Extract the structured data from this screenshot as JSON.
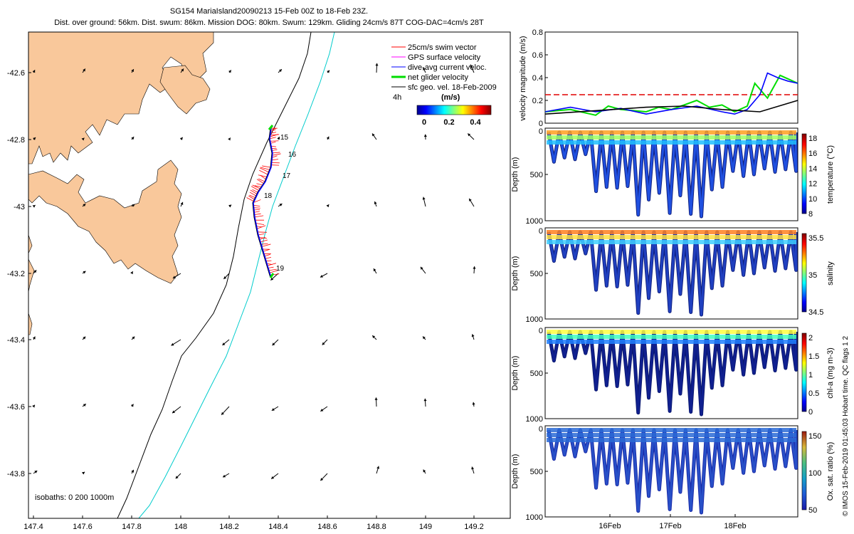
{
  "header": {
    "title": "SG154 MariaIsland20090213 15-Feb 00Z to 18-Feb 23Z.",
    "subtitle": "Dist. over ground: 56km. Dist. swum: 86km. Mission DOG: 80km. Swum: 129km. Gliding 24cm/s 87T COG-DAC=4cm/s 28T"
  },
  "map": {
    "legend": [
      {
        "label": "25cm/s swim vector",
        "color": "#ff0000"
      },
      {
        "label": "GPS surface velocity",
        "color": "#ff00ff"
      },
      {
        "label": "dive-avg current veloc.",
        "color": "#0000ff"
      },
      {
        "label": "net glider velocity",
        "color": "#00dd00"
      },
      {
        "label": "sfc geo. vel. 18-Feb-2009",
        "color": "#000000"
      }
    ],
    "hours_label": "4h",
    "colorbar_label": "(m/s)",
    "colorbar_ticks": [
      "0",
      "0.2",
      "0.4"
    ],
    "isobath_label": "isobaths: 0   200  1000m",
    "day_markers": [
      "15",
      "16",
      "17",
      "18",
      "19"
    ],
    "x_ticks": [
      "147.4",
      "147.6",
      "147.8",
      "148",
      "148.2",
      "148.4",
      "148.6",
      "148.8",
      "149",
      "149.2"
    ],
    "y_ticks": [
      "-42.6",
      "-42.8",
      "-43",
      "-43.2",
      "-43.4",
      "-43.6",
      "-43.8"
    ],
    "colors": {
      "land": "#f9c89b",
      "isobath_200": "#000000",
      "isobath_1000": "#00cccc"
    }
  },
  "chart_data": [
    {
      "type": "line",
      "ylabel": "velocity magnitude (m/s)",
      "ylim": [
        0,
        0.8
      ],
      "yticks": [
        "0",
        "0.2",
        "0.4",
        "0.6",
        "0.8"
      ],
      "threshold": 0.25,
      "series": [
        {
          "color": "#00dd00",
          "x": [
            0,
            0.1,
            0.2,
            0.25,
            0.3,
            0.4,
            0.45,
            0.5,
            0.6,
            0.65,
            0.7,
            0.75,
            0.8,
            0.83,
            0.88,
            0.93,
            0.97,
            1.0
          ],
          "values": [
            0.1,
            0.12,
            0.07,
            0.15,
            0.12,
            0.1,
            0.14,
            0.12,
            0.2,
            0.14,
            0.16,
            0.1,
            0.15,
            0.35,
            0.22,
            0.42,
            0.38,
            0.35
          ]
        },
        {
          "color": "#0000ff",
          "x": [
            0,
            0.1,
            0.2,
            0.3,
            0.4,
            0.5,
            0.6,
            0.7,
            0.75,
            0.8,
            0.85,
            0.88,
            0.92,
            0.96,
            1.0
          ],
          "values": [
            0.1,
            0.14,
            0.1,
            0.13,
            0.08,
            0.12,
            0.15,
            0.1,
            0.08,
            0.12,
            0.25,
            0.44,
            0.4,
            0.37,
            0.35
          ]
        },
        {
          "color": "#000000",
          "x": [
            0,
            0.2,
            0.4,
            0.55,
            0.7,
            0.85,
            1.0
          ],
          "values": [
            0.08,
            0.11,
            0.14,
            0.15,
            0.12,
            0.1,
            0.2
          ]
        }
      ]
    },
    {
      "type": "scatter",
      "ylabel": "Depth (m)",
      "cbar_label": "temperature (°C)",
      "cbar_ticks": [
        "8",
        "10",
        "12",
        "14",
        "16",
        "18"
      ],
      "yticks": [
        "500",
        "1000"
      ]
    },
    {
      "type": "scatter",
      "ylabel": "Depth (m)",
      "cbar_label": "salinity",
      "cbar_ticks": [
        "34.5",
        "35",
        "35.5"
      ],
      "yticks": [
        "500",
        "1000"
      ]
    },
    {
      "type": "scatter",
      "ylabel": "Depth (m)",
      "cbar_label": "chl-a (mg m-3)",
      "cbar_ticks": [
        "0",
        "0.5",
        "1",
        "1.5",
        "2"
      ],
      "yticks": [
        "500",
        "1000"
      ]
    },
    {
      "type": "scatter",
      "ylabel": "Depth (m)",
      "cbar_label": "Ox. sat. ratio (%)",
      "cbar_ticks": [
        "50",
        "100",
        "150"
      ],
      "yticks": [
        "500",
        "1000"
      ],
      "xticks": [
        "16Feb",
        "17Feb",
        "18Feb"
      ]
    }
  ],
  "dive_depths": [
    350,
    300,
    320,
    260,
    700,
    650,
    660,
    640,
    980,
    800,
    720,
    960,
    750,
    970,
    1000,
    680,
    650,
    460,
    520,
    500,
    430,
    470,
    440,
    460
  ],
  "footer": {
    "credit": "© IMOS 15-Feb-2019 01:45:03 Hobart time. QC flags 1 2"
  }
}
